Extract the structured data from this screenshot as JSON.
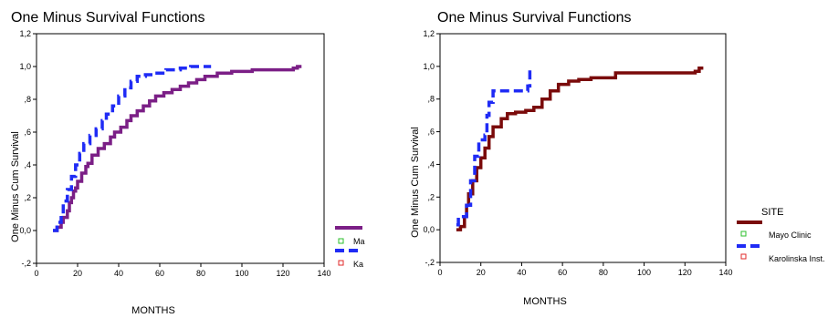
{
  "chart_data": [
    {
      "type": "line",
      "step": true,
      "title": "One Minus Survival Functions",
      "xlabel": "MONTHS",
      "ylabel": "One Minus Cum Survival",
      "xlim": [
        0,
        140
      ],
      "ylim": [
        -0.2,
        1.2
      ],
      "x_ticks": [
        "0",
        "20",
        "40",
        "60",
        "80",
        "100",
        "120",
        "140"
      ],
      "y_ticks": [
        "-,2",
        "0,0",
        ",2",
        ",4",
        ",6",
        ",8",
        "1,0",
        "1,2"
      ],
      "grid": false,
      "legend_position": "right",
      "legend_title": "",
      "legend_labels": [
        "Ma",
        "Ka"
      ],
      "series": [
        {
          "name": "Ma",
          "color": "#7b1f86",
          "dash": false,
          "points": [
            [
              8,
              0.0
            ],
            [
              10,
              0.02
            ],
            [
              12,
              0.05
            ],
            [
              13,
              0.08
            ],
            [
              15,
              0.12
            ],
            [
              16,
              0.17
            ],
            [
              17,
              0.2
            ],
            [
              18,
              0.24
            ],
            [
              19,
              0.26
            ],
            [
              20,
              0.3
            ],
            [
              22,
              0.35
            ],
            [
              24,
              0.39
            ],
            [
              25,
              0.41
            ],
            [
              27,
              0.46
            ],
            [
              30,
              0.5
            ],
            [
              33,
              0.53
            ],
            [
              36,
              0.57
            ],
            [
              38,
              0.6
            ],
            [
              41,
              0.63
            ],
            [
              44,
              0.67
            ],
            [
              46,
              0.7
            ],
            [
              49,
              0.73
            ],
            [
              52,
              0.76
            ],
            [
              55,
              0.79
            ],
            [
              58,
              0.82
            ],
            [
              62,
              0.84
            ],
            [
              66,
              0.86
            ],
            [
              70,
              0.88
            ],
            [
              74,
              0.9
            ],
            [
              78,
              0.92
            ],
            [
              82,
              0.94
            ],
            [
              88,
              0.96
            ],
            [
              95,
              0.97
            ],
            [
              105,
              0.98
            ],
            [
              115,
              0.98
            ],
            [
              125,
              0.99
            ],
            [
              127,
              1.0
            ],
            [
              129,
              1.0
            ]
          ]
        },
        {
          "name": "Ka",
          "color": "#1f2bf5",
          "dash": true,
          "points": [
            [
              8,
              0.0
            ],
            [
              10,
              0.05
            ],
            [
              12,
              0.1
            ],
            [
              13,
              0.18
            ],
            [
              15,
              0.25
            ],
            [
              17,
              0.33
            ],
            [
              19,
              0.4
            ],
            [
              21,
              0.47
            ],
            [
              23,
              0.53
            ],
            [
              26,
              0.58
            ],
            [
              29,
              0.62
            ],
            [
              32,
              0.67
            ],
            [
              34,
              0.71
            ],
            [
              37,
              0.76
            ],
            [
              40,
              0.82
            ],
            [
              43,
              0.87
            ],
            [
              46,
              0.91
            ],
            [
              49,
              0.94
            ],
            [
              53,
              0.95
            ],
            [
              57,
              0.96
            ],
            [
              63,
              0.98
            ],
            [
              70,
              0.99
            ],
            [
              75,
              1.0
            ],
            [
              85,
              1.0
            ]
          ]
        }
      ]
    },
    {
      "type": "line",
      "step": true,
      "title": "One Minus Survival Functions",
      "xlabel": "MONTHS",
      "ylabel": "One Minus Cum Survival",
      "xlim": [
        0,
        140
      ],
      "ylim": [
        -0.2,
        1.2
      ],
      "x_ticks": [
        "0",
        "20",
        "40",
        "60",
        "80",
        "100",
        "120",
        "140"
      ],
      "y_ticks": [
        "-,2",
        "0,0",
        ",2",
        ",4",
        ",6",
        ",8",
        "1,0",
        "1,2"
      ],
      "grid": false,
      "legend_position": "right",
      "legend_title": "SITE",
      "legend_labels": [
        "Mayo Clinic",
        "Karolinska Inst."
      ],
      "series": [
        {
          "name": "Mayo Clinic",
          "color": "#7a0a0a",
          "dash": false,
          "points": [
            [
              8,
              0.0
            ],
            [
              10,
              0.02
            ],
            [
              12,
              0.08
            ],
            [
              13,
              0.15
            ],
            [
              14,
              0.22
            ],
            [
              16,
              0.3
            ],
            [
              18,
              0.38
            ],
            [
              20,
              0.44
            ],
            [
              22,
              0.5
            ],
            [
              24,
              0.57
            ],
            [
              26,
              0.63
            ],
            [
              30,
              0.68
            ],
            [
              33,
              0.71
            ],
            [
              37,
              0.72
            ],
            [
              42,
              0.73
            ],
            [
              46,
              0.75
            ],
            [
              50,
              0.8
            ],
            [
              54,
              0.85
            ],
            [
              58,
              0.89
            ],
            [
              63,
              0.91
            ],
            [
              68,
              0.92
            ],
            [
              74,
              0.93
            ],
            [
              86,
              0.96
            ],
            [
              100,
              0.96
            ],
            [
              115,
              0.96
            ],
            [
              125,
              0.97
            ],
            [
              127,
              0.99
            ],
            [
              129,
              0.99
            ]
          ]
        },
        {
          "name": "Karolinska Inst.",
          "color": "#1f2bf5",
          "dash": true,
          "points": [
            [
              8,
              0.03
            ],
            [
              9,
              0.08
            ],
            [
              13,
              0.15
            ],
            [
              15,
              0.3
            ],
            [
              17,
              0.45
            ],
            [
              19,
              0.55
            ],
            [
              22,
              0.58
            ],
            [
              23,
              0.7
            ],
            [
              24,
              0.78
            ],
            [
              26,
              0.85
            ],
            [
              38,
              0.85
            ],
            [
              43,
              0.88
            ],
            [
              44,
              0.98
            ],
            [
              45,
              0.98
            ]
          ]
        }
      ]
    }
  ]
}
